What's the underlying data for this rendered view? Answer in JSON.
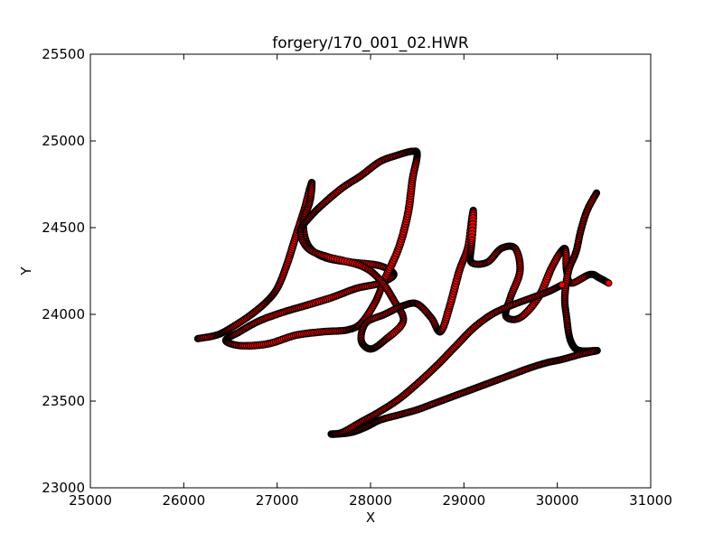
{
  "chart_data": {
    "type": "scatter",
    "title": "forgery/170_001_02.HWR",
    "xlabel": "X",
    "ylabel": "Y",
    "xlim": [
      25000,
      31000
    ],
    "ylim": [
      23000,
      25500
    ],
    "xticks": [
      25000,
      26000,
      27000,
      28000,
      29000,
      30000,
      31000
    ],
    "yticks": [
      23000,
      23500,
      24000,
      24500,
      25000,
      25500
    ],
    "xtick_labels": [
      "25000",
      "26000",
      "27000",
      "28000",
      "29000",
      "30000",
      "31000"
    ],
    "ytick_labels": [
      "23000",
      "23500",
      "24000",
      "24500",
      "25000",
      "25500"
    ],
    "grid": false,
    "marker_color": "#ff0000",
    "marker_edge_color": "#000000",
    "line_color": "#ff0000",
    "strokes": [
      {
        "points": [
          [
            26150,
            23860
          ],
          [
            26350,
            23880
          ],
          [
            26500,
            23920
          ],
          [
            26700,
            23990
          ],
          [
            26880,
            24070
          ],
          [
            27000,
            24150
          ],
          [
            27100,
            24280
          ],
          [
            27200,
            24450
          ],
          [
            27300,
            24620
          ],
          [
            27370,
            24760
          ],
          [
            27350,
            24650
          ],
          [
            27280,
            24530
          ],
          [
            27330,
            24400
          ],
          [
            27500,
            24330
          ],
          [
            27800,
            24300
          ],
          [
            28100,
            24280
          ],
          [
            28250,
            24230
          ],
          [
            28100,
            24180
          ],
          [
            27850,
            24150
          ],
          [
            27600,
            24100
          ],
          [
            27300,
            24050
          ],
          [
            27050,
            24010
          ],
          [
            26800,
            23960
          ],
          [
            26600,
            23900
          ],
          [
            26450,
            23850
          ],
          [
            26600,
            23820
          ],
          [
            26900,
            23830
          ],
          [
            27200,
            23880
          ],
          [
            27500,
            23900
          ],
          [
            27750,
            23910
          ],
          [
            27900,
            23950
          ],
          [
            28050,
            24070
          ],
          [
            28150,
            24200
          ],
          [
            28300,
            24380
          ],
          [
            28400,
            24580
          ],
          [
            28450,
            24780
          ],
          [
            28500,
            24920
          ],
          [
            28450,
            24940
          ],
          [
            28300,
            24920
          ],
          [
            28100,
            24880
          ],
          [
            27900,
            24800
          ],
          [
            27700,
            24730
          ],
          [
            27500,
            24640
          ],
          [
            27350,
            24560
          ],
          [
            27250,
            24480
          ],
          [
            27330,
            24380
          ],
          [
            27550,
            24330
          ],
          [
            27900,
            24280
          ],
          [
            28100,
            24200
          ],
          [
            28250,
            24080
          ],
          [
            28350,
            23960
          ],
          [
            28150,
            23850
          ],
          [
            28000,
            23800
          ],
          [
            27900,
            23850
          ],
          [
            27950,
            23950
          ],
          [
            28150,
            24000
          ],
          [
            28350,
            24050
          ],
          [
            28500,
            24060
          ],
          [
            28650,
            23980
          ],
          [
            28750,
            23900
          ],
          [
            28850,
            24050
          ],
          [
            28950,
            24250
          ],
          [
            29050,
            24400
          ],
          [
            29100,
            24600
          ],
          [
            29080,
            24400
          ],
          [
            29080,
            24300
          ],
          [
            29250,
            24300
          ],
          [
            29400,
            24380
          ],
          [
            29550,
            24380
          ],
          [
            29600,
            24250
          ],
          [
            29500,
            24100
          ],
          [
            29450,
            23990
          ],
          [
            29600,
            23980
          ],
          [
            29800,
            24100
          ],
          [
            29950,
            24280
          ],
          [
            30080,
            24380
          ],
          [
            30100,
            24250
          ],
          [
            30150,
            24180
          ],
          [
            30350,
            24230
          ],
          [
            30450,
            24210
          ],
          [
            30550,
            24180
          ]
        ]
      },
      {
        "points": [
          [
            30420,
            24700
          ],
          [
            30320,
            24600
          ],
          [
            30250,
            24480
          ],
          [
            30200,
            24360
          ],
          [
            30120,
            24250
          ],
          [
            30080,
            24100
          ],
          [
            30100,
            23980
          ],
          [
            30130,
            23870
          ],
          [
            30180,
            23810
          ],
          [
            30250,
            23790
          ],
          [
            30380,
            23790
          ],
          [
            30420,
            23790
          ],
          [
            30250,
            23770
          ],
          [
            30050,
            23740
          ],
          [
            29880,
            23720
          ],
          [
            29700,
            23690
          ],
          [
            29500,
            23650
          ],
          [
            29300,
            23610
          ],
          [
            29100,
            23570
          ],
          [
            28900,
            23530
          ],
          [
            28700,
            23490
          ],
          [
            28500,
            23450
          ],
          [
            28300,
            23420
          ],
          [
            28100,
            23390
          ],
          [
            27950,
            23350
          ],
          [
            27800,
            23320
          ],
          [
            27650,
            23310
          ],
          [
            27580,
            23310
          ],
          [
            27700,
            23320
          ],
          [
            27900,
            23380
          ],
          [
            28100,
            23440
          ],
          [
            28300,
            23510
          ],
          [
            28500,
            23600
          ],
          [
            28700,
            23700
          ],
          [
            28900,
            23810
          ],
          [
            29100,
            23920
          ],
          [
            29300,
            24000
          ],
          [
            29500,
            24050
          ],
          [
            29700,
            24090
          ],
          [
            29900,
            24130
          ],
          [
            30050,
            24170
          ]
        ]
      }
    ]
  }
}
